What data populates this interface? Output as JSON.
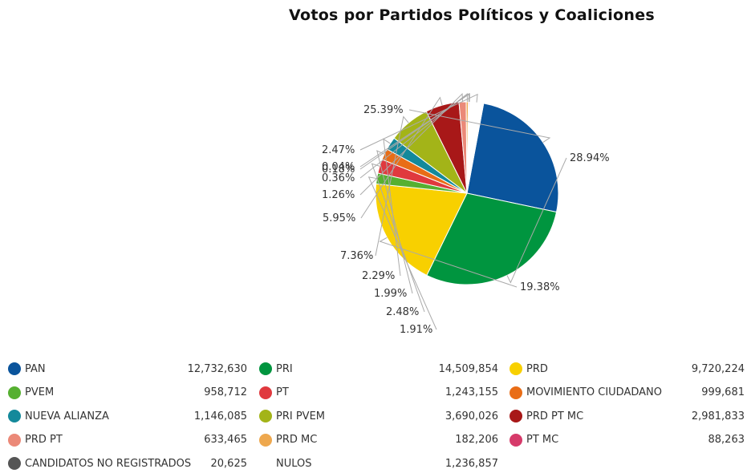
{
  "chart_data": {
    "type": "pie",
    "title": "Votos por Partidos Políticos y Coaliciones",
    "slices": [
      {
        "name": "PAN",
        "value": 12732630,
        "label": "25.39%",
        "color": "#0a549c"
      },
      {
        "name": "PRI",
        "value": 14509854,
        "label": "28.94%",
        "color": "#00953f"
      },
      {
        "name": "PRD",
        "value": 9720224,
        "label": "19.38%",
        "color": "#f8d000"
      },
      {
        "name": "PVEM",
        "value": 958712,
        "label": "1.91%",
        "color": "#56b031"
      },
      {
        "name": "PT",
        "value": 1243155,
        "label": "2.48%",
        "color": "#e0393e"
      },
      {
        "name": "MOVIMIENTO CIUDADANO",
        "value": 999681,
        "label": "1.99%",
        "color": "#e96d16"
      },
      {
        "name": "NUEVA ALIANZA",
        "value": 1146085,
        "label": "2.29%",
        "color": "#14899b"
      },
      {
        "name": "PRI PVEM",
        "value": 3690026,
        "label": "7.36%",
        "color": "#a3b418"
      },
      {
        "name": "PRD PT MC",
        "value": 2981833,
        "label": "5.95%",
        "color": "#a81818"
      },
      {
        "name": "PRD PT",
        "value": 633465,
        "label": "1.26%",
        "color": "#eb8978"
      },
      {
        "name": "PRD MC",
        "value": 182206,
        "label": "0.36%",
        "color": "#eea84e"
      },
      {
        "name": "PT MC",
        "value": 88263,
        "label": "0.18%",
        "color": "#d63a6a"
      },
      {
        "name": "CANDIDATOS NO REGISTRADOS",
        "value": 20625,
        "label": "0.04%",
        "color": "#555555"
      },
      {
        "name": "NULOS",
        "value": 1236857,
        "label": "2.47%",
        "color": "#ffffff"
      }
    ]
  },
  "legend": [
    {
      "label": "PAN",
      "value": "12,732,630",
      "color": "#0a549c"
    },
    {
      "label": "PRI",
      "value": "14,509,854",
      "color": "#00953f"
    },
    {
      "label": "PRD",
      "value": "9,720,224",
      "color": "#f8d000"
    },
    {
      "label": "PVEM",
      "value": "958,712",
      "color": "#56b031"
    },
    {
      "label": "PT",
      "value": "1,243,155",
      "color": "#e0393e"
    },
    {
      "label": "MOVIMIENTO CIUDADANO",
      "value": "999,681",
      "color": "#e96d16"
    },
    {
      "label": "NUEVA ALIANZA",
      "value": "1,146,085",
      "color": "#14899b"
    },
    {
      "label": "PRI PVEM",
      "value": "3,690,026",
      "color": "#a3b418"
    },
    {
      "label": "PRD PT MC",
      "value": "2,981,833",
      "color": "#a81818"
    },
    {
      "label": "PRD PT",
      "value": "633,465",
      "color": "#eb8978"
    },
    {
      "label": "PRD MC",
      "value": "182,206",
      "color": "#eea84e"
    },
    {
      "label": "PT MC",
      "value": "88,263",
      "color": "#d63a6a"
    },
    {
      "label": "CANDIDATOS NO REGISTRADOS",
      "value": "20,625",
      "color": "#555555"
    },
    {
      "label": "NULOS",
      "value": "1,236,857",
      "color": "#ffffff"
    }
  ]
}
